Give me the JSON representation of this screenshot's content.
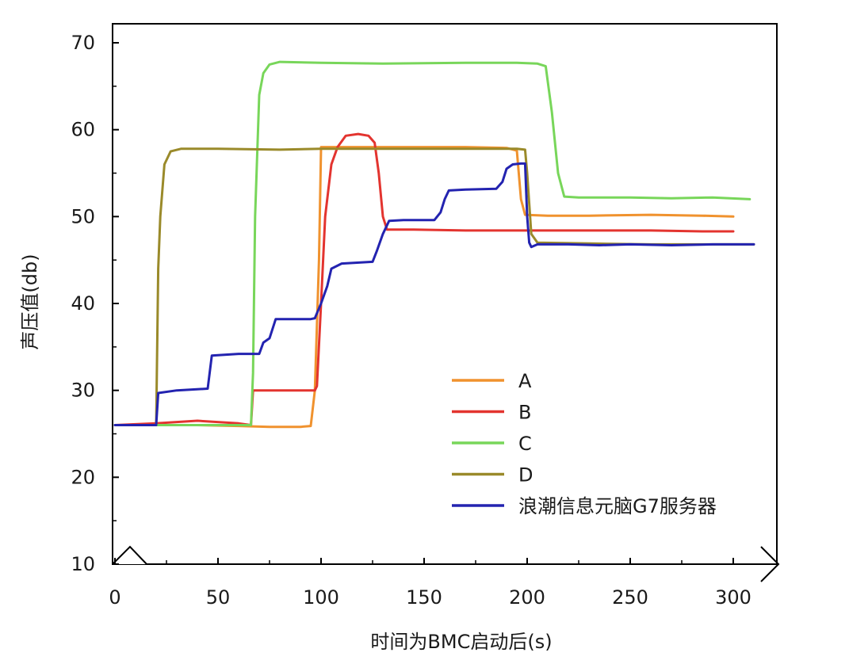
{
  "chart_data": {
    "type": "line",
    "title": "",
    "xlabel": "时间为BMC启动后(s)",
    "ylabel": "声压值(db)",
    "xlim": [
      0,
      310
    ],
    "ylim": [
      10,
      72
    ],
    "x_ticks": [
      0,
      50,
      100,
      150,
      200,
      250,
      300
    ],
    "y_ticks": [
      10,
      20,
      30,
      40,
      50,
      60,
      70
    ],
    "legend_position": "lower-right",
    "axis_break": "x-axis between 0 and 10",
    "series": [
      {
        "name": "A",
        "color": "#f0922e",
        "points": [
          [
            0,
            26
          ],
          [
            20,
            26
          ],
          [
            40,
            26
          ],
          [
            60,
            25.9
          ],
          [
            75,
            25.8
          ],
          [
            90,
            25.8
          ],
          [
            95,
            25.9
          ],
          [
            97,
            30
          ],
          [
            99,
            45
          ],
          [
            100,
            58
          ],
          [
            110,
            58
          ],
          [
            130,
            58
          ],
          [
            150,
            58
          ],
          [
            170,
            58
          ],
          [
            190,
            57.9
          ],
          [
            195,
            57.6
          ],
          [
            197,
            52
          ],
          [
            199,
            50.2
          ],
          [
            210,
            50.1
          ],
          [
            230,
            50.1
          ],
          [
            260,
            50.2
          ],
          [
            285,
            50.1
          ],
          [
            300,
            50
          ]
        ]
      },
      {
        "name": "B",
        "color": "#e3342f",
        "points": [
          [
            0,
            26
          ],
          [
            20,
            26.2
          ],
          [
            40,
            26.5
          ],
          [
            60,
            26.2
          ],
          [
            66,
            26
          ],
          [
            67,
            30
          ],
          [
            80,
            30
          ],
          [
            97,
            30
          ],
          [
            98,
            30.5
          ],
          [
            100,
            40
          ],
          [
            102,
            50
          ],
          [
            105,
            56
          ],
          [
            108,
            58
          ],
          [
            112,
            59.3
          ],
          [
            118,
            59.5
          ],
          [
            123,
            59.3
          ],
          [
            126,
            58.5
          ],
          [
            128,
            55
          ],
          [
            130,
            50
          ],
          [
            132,
            48.5
          ],
          [
            145,
            48.5
          ],
          [
            170,
            48.4
          ],
          [
            200,
            48.4
          ],
          [
            230,
            48.4
          ],
          [
            260,
            48.4
          ],
          [
            285,
            48.3
          ],
          [
            300,
            48.3
          ]
        ]
      },
      {
        "name": "C",
        "color": "#78d65a",
        "points": [
          [
            0,
            26
          ],
          [
            20,
            26
          ],
          [
            40,
            26
          ],
          [
            60,
            26
          ],
          [
            66,
            26
          ],
          [
            67,
            32
          ],
          [
            68,
            50
          ],
          [
            70,
            64
          ],
          [
            72,
            66.5
          ],
          [
            75,
            67.5
          ],
          [
            80,
            67.8
          ],
          [
            100,
            67.7
          ],
          [
            130,
            67.6
          ],
          [
            170,
            67.7
          ],
          [
            195,
            67.7
          ],
          [
            205,
            67.6
          ],
          [
            209,
            67.3
          ],
          [
            212,
            62
          ],
          [
            215,
            55
          ],
          [
            218,
            52.3
          ],
          [
            225,
            52.2
          ],
          [
            250,
            52.2
          ],
          [
            270,
            52.1
          ],
          [
            290,
            52.2
          ],
          [
            308,
            52
          ]
        ]
      },
      {
        "name": "D",
        "color": "#9a8a2a",
        "points": [
          [
            0,
            26
          ],
          [
            10,
            26
          ],
          [
            20,
            26
          ],
          [
            21,
            44
          ],
          [
            22,
            50
          ],
          [
            24,
            56
          ],
          [
            27,
            57.5
          ],
          [
            32,
            57.8
          ],
          [
            50,
            57.8
          ],
          [
            80,
            57.7
          ],
          [
            100,
            57.8
          ],
          [
            130,
            57.8
          ],
          [
            160,
            57.8
          ],
          [
            195,
            57.8
          ],
          [
            199,
            57.7
          ],
          [
            200,
            55
          ],
          [
            202,
            48
          ],
          [
            205,
            47
          ],
          [
            230,
            46.9
          ],
          [
            260,
            46.8
          ],
          [
            285,
            46.8
          ],
          [
            300,
            46.8
          ],
          [
            310,
            46.8
          ]
        ]
      },
      {
        "name": "浪潮信息元脑G7服务器",
        "color": "#2323b0",
        "points": [
          [
            0,
            26
          ],
          [
            20,
            26
          ],
          [
            21,
            29.7
          ],
          [
            30,
            30
          ],
          [
            45,
            30.2
          ],
          [
            47,
            34
          ],
          [
            60,
            34.2
          ],
          [
            70,
            34.2
          ],
          [
            72,
            35.5
          ],
          [
            75,
            36
          ],
          [
            78,
            38.2
          ],
          [
            95,
            38.2
          ],
          [
            97,
            38.3
          ],
          [
            100,
            40
          ],
          [
            103,
            42
          ],
          [
            105,
            44
          ],
          [
            110,
            44.6
          ],
          [
            125,
            44.8
          ],
          [
            127,
            46
          ],
          [
            130,
            48
          ],
          [
            133,
            49.5
          ],
          [
            140,
            49.6
          ],
          [
            155,
            49.6
          ],
          [
            158,
            50.5
          ],
          [
            160,
            52
          ],
          [
            162,
            53
          ],
          [
            170,
            53.1
          ],
          [
            185,
            53.2
          ],
          [
            188,
            54
          ],
          [
            190,
            55.5
          ],
          [
            193,
            56
          ],
          [
            197,
            56.1
          ],
          [
            199,
            56.1
          ],
          [
            200,
            50
          ],
          [
            201,
            47
          ],
          [
            202,
            46.5
          ],
          [
            205,
            46.8
          ],
          [
            220,
            46.8
          ],
          [
            235,
            46.7
          ],
          [
            250,
            46.8
          ],
          [
            270,
            46.7
          ],
          [
            290,
            46.8
          ],
          [
            310,
            46.8
          ]
        ]
      }
    ]
  }
}
